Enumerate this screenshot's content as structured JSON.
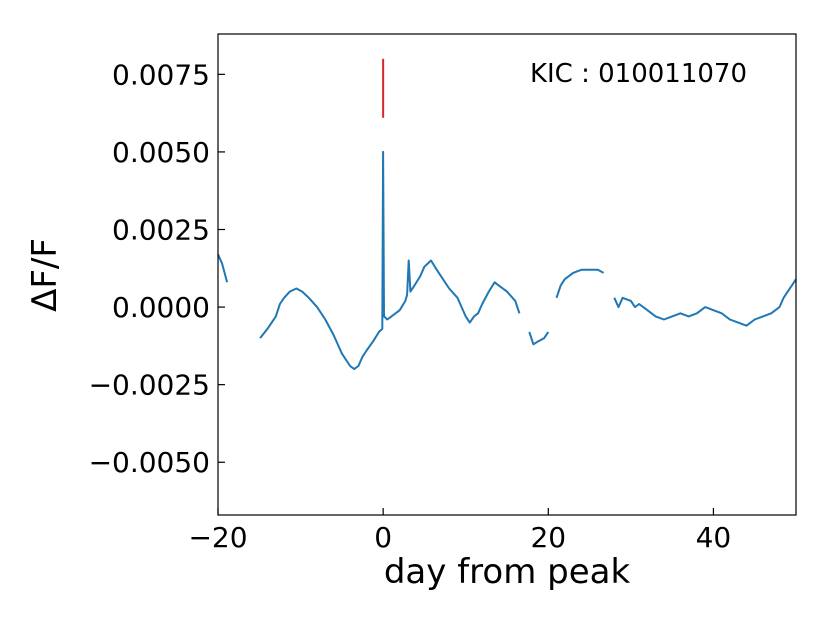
{
  "chart_data": {
    "type": "line",
    "title": "",
    "xlabel": "day from peak",
    "ylabel": "ΔF/F",
    "xlim": [
      -20,
      50
    ],
    "ylim": [
      -0.0067,
      0.0088
    ],
    "xticks": [
      -20,
      0,
      20,
      40
    ],
    "xtick_labels": [
      "−20",
      "0",
      "20",
      "40"
    ],
    "yticks": [
      0.0075,
      0.005,
      0.0025,
      0.0,
      -0.0025,
      -0.005
    ],
    "ytick_labels": [
      "0.0075",
      "0.0050",
      "0.0025",
      "0.0000",
      "−0.0025",
      "−0.0050"
    ],
    "grid": false,
    "annotation": "KIC : 010011070",
    "colors": {
      "series": "#1f77b4",
      "marker": "#d62728"
    },
    "peak_marker": {
      "x": 0,
      "y_range": [
        0.0061,
        0.008
      ]
    },
    "series": [
      {
        "segments": [
          [
            [
              -20,
              0.0017
            ],
            [
              -19.5,
              0.0014
            ],
            [
              -19.2,
              0.0011
            ],
            [
              -18.9,
              0.0008
            ]
          ],
          [
            [
              -14.9,
              -0.001
            ],
            [
              -14,
              -0.0007
            ],
            [
              -13,
              -0.0003
            ],
            [
              -12.5,
              0.0001
            ],
            [
              -12,
              0.0003
            ],
            [
              -11.3,
              0.0005
            ],
            [
              -10.5,
              0.0006
            ],
            [
              -9.8,
              0.0005
            ],
            [
              -9,
              0.0003
            ],
            [
              -8,
              0.0
            ],
            [
              -7,
              -0.0004
            ],
            [
              -6,
              -0.0009
            ],
            [
              -5,
              -0.0015
            ],
            [
              -4,
              -0.0019
            ],
            [
              -3.5,
              -0.002
            ],
            [
              -3,
              -0.0019
            ],
            [
              -2.5,
              -0.0016
            ],
            [
              -2,
              -0.0014
            ],
            [
              -1.2,
              -0.0011
            ],
            [
              -0.5,
              -0.0008
            ],
            [
              -0.1,
              -0.0007
            ],
            [
              0,
              0.005
            ],
            [
              0.1,
              -0.0003
            ],
            [
              0.5,
              -0.0004
            ],
            [
              1,
              -0.0003
            ],
            [
              2,
              -0.0001
            ],
            [
              2.7,
              0.0002
            ],
            [
              2.9,
              0.0004
            ],
            [
              3.1,
              0.0015
            ],
            [
              3.3,
              0.0005
            ],
            [
              3.8,
              0.0007
            ],
            [
              4.5,
              0.001
            ],
            [
              5,
              0.0013
            ],
            [
              5.8,
              0.0015
            ],
            [
              6.5,
              0.0012
            ],
            [
              7,
              0.001
            ],
            [
              8,
              0.0006
            ],
            [
              9,
              0.0003
            ],
            [
              9.5,
              0.0
            ],
            [
              10,
              -0.0003
            ],
            [
              10.5,
              -0.0005
            ],
            [
              11,
              -0.0003
            ],
            [
              11.5,
              -0.0002
            ],
            [
              12,
              0.0001
            ],
            [
              12.8,
              0.0005
            ],
            [
              13.5,
              0.0008
            ],
            [
              14,
              0.0007
            ],
            [
              15,
              0.0005
            ],
            [
              16,
              0.0002
            ],
            [
              16.5,
              -0.0002
            ]
          ],
          [
            [
              17.7,
              -0.0008
            ],
            [
              18.2,
              -0.0012
            ],
            [
              18.8,
              -0.0011
            ],
            [
              19.5,
              -0.001
            ],
            [
              20,
              -0.0008
            ]
          ],
          [
            [
              21,
              0.0003
            ],
            [
              21.5,
              0.0007
            ],
            [
              22,
              0.0009
            ],
            [
              23,
              0.0011
            ],
            [
              24,
              0.0012
            ],
            [
              25,
              0.0012
            ],
            [
              26,
              0.0012
            ],
            [
              26.7,
              0.0011
            ]
          ],
          [
            [
              28,
              0.0003
            ],
            [
              28.5,
              0.0
            ],
            [
              29,
              0.0003
            ],
            [
              30,
              0.0002
            ],
            [
              30.5,
              0.0
            ],
            [
              31,
              0.0001
            ],
            [
              32,
              -0.0001
            ],
            [
              33,
              -0.0003
            ],
            [
              34,
              -0.0004
            ],
            [
              35,
              -0.0003
            ],
            [
              36,
              -0.0002
            ],
            [
              37,
              -0.0003
            ],
            [
              38,
              -0.0002
            ],
            [
              39,
              0.0
            ],
            [
              40,
              -0.0001
            ],
            [
              41,
              -0.0002
            ],
            [
              42,
              -0.0004
            ],
            [
              43,
              -0.0005
            ],
            [
              44,
              -0.0006
            ],
            [
              45,
              -0.0004
            ],
            [
              46,
              -0.0003
            ],
            [
              47,
              -0.0002
            ],
            [
              48,
              0.0
            ],
            [
              48.5,
              0.0003
            ],
            [
              49,
              0.0005
            ],
            [
              49.5,
              0.0007
            ],
            [
              50,
              0.0009
            ]
          ]
        ]
      }
    ]
  }
}
